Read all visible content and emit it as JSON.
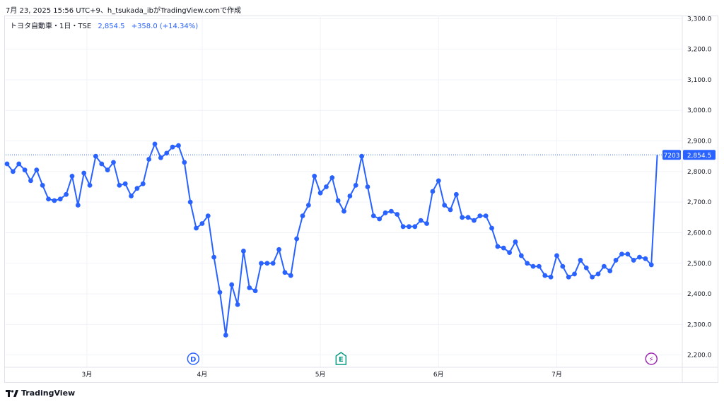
{
  "header": {
    "snapshot_text": "7月 23, 2025 15:56 UTC+9、h_tsukada_ibがTradingView.comで作成"
  },
  "legend": {
    "symbol": "トヨタ自動車・1日・TSE",
    "price": "2,854.5",
    "change": "+358.0 (+14.34%)"
  },
  "brand": {
    "name": "TradingView"
  },
  "colors": {
    "line": "#2962ff",
    "grid": "#f0f3fa",
    "axis_text": "#131722",
    "price_tag": "#2962ff"
  },
  "chart_data": {
    "type": "line",
    "y_ticks": [
      2200,
      2300,
      2400,
      2500,
      2600,
      2700,
      2800,
      2900,
      3000,
      3100,
      3200,
      3300
    ],
    "y_tick_labels": [
      "2,200.0",
      "2,300.0",
      "2,400.0",
      "2,500.0",
      "2,600.0",
      "2,700.0",
      "2,800.0",
      "2,900.0",
      "3,000.0",
      "3,100.0",
      "3,200.0",
      "3,300.0"
    ],
    "ylim": [
      2160,
      3310
    ],
    "x_month_labels": [
      {
        "label": "3月",
        "index": 13.5
      },
      {
        "label": "4月",
        "index": 33
      },
      {
        "label": "5月",
        "index": 53
      },
      {
        "label": "6月",
        "index": 73
      },
      {
        "label": "7月",
        "index": 93
      }
    ],
    "events": [
      {
        "code": "D",
        "index": 31.5,
        "color": "#2962ff",
        "icon": "dividend-icon"
      },
      {
        "code": "E",
        "index": 56.5,
        "color": "#089981",
        "icon": "earnings-icon"
      },
      {
        "code": "⚡",
        "index": 109,
        "color": "#9c27b0",
        "icon": "lightning-icon"
      }
    ],
    "last_price": 2854.5,
    "last_price_label": "2,854.5",
    "ticker_label": "7203",
    "values": [
      2825,
      2800,
      2825,
      2805,
      2770,
      2805,
      2755,
      2710,
      2705,
      2710,
      2725,
      2785,
      2690,
      2795,
      2755,
      2850,
      2825,
      2805,
      2830,
      2755,
      2760,
      2720,
      2745,
      2760,
      2840,
      2890,
      2845,
      2860,
      2880,
      2885,
      2830,
      2700,
      2615,
      2630,
      2655,
      2520,
      2405,
      2265,
      2430,
      2365,
      2540,
      2420,
      2410,
      2500,
      2500,
      2500,
      2545,
      2470,
      2460,
      2580,
      2655,
      2690,
      2785,
      2730,
      2750,
      2780,
      2705,
      2670,
      2720,
      2755,
      2850,
      2750,
      2655,
      2645,
      2665,
      2670,
      2660,
      2620,
      2620,
      2620,
      2640,
      2630,
      2735,
      2770,
      2690,
      2675,
      2725,
      2650,
      2650,
      2640,
      2655,
      2655,
      2615,
      2555,
      2550,
      2535,
      2570,
      2525,
      2500,
      2490,
      2490,
      2460,
      2455,
      2525,
      2490,
      2455,
      2465,
      2510,
      2485,
      2455,
      2465,
      2490,
      2475,
      2510,
      2530,
      2530,
      2510,
      2520,
      2515,
      2495,
      2854.5
    ]
  }
}
